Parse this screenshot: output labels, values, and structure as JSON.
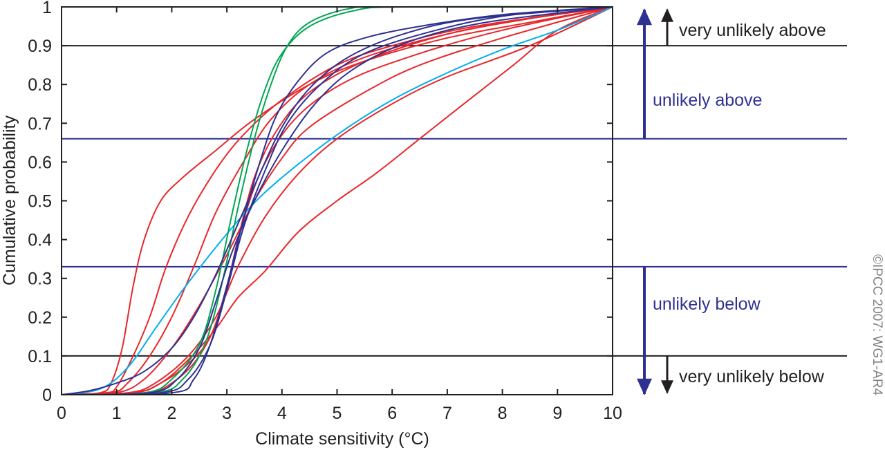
{
  "chart_data": {
    "type": "line",
    "title": "",
    "xlabel": "Climate sensitivity (°C)",
    "ylabel": "Cumulative probability",
    "xlim": [
      0,
      10
    ],
    "ylim": [
      0,
      1
    ],
    "xticks": [
      "0",
      "1",
      "2",
      "3",
      "4",
      "5",
      "6",
      "7",
      "8",
      "9",
      "10"
    ],
    "yticks": [
      "0",
      "0.1",
      "0.2",
      "0.3",
      "0.4",
      "0.5",
      "0.6",
      "0.7",
      "0.8",
      "0.9",
      "1"
    ],
    "grid": false,
    "colors": {
      "red": "#e8262a",
      "blue": "#2e3192",
      "green": "#00a651",
      "cyan": "#00aeef",
      "black": "#231f20"
    },
    "reference_lines": [
      {
        "y": 0.9,
        "color": "#231f20"
      },
      {
        "y": 0.66,
        "color": "#2e3192"
      },
      {
        "y": 0.33,
        "color": "#2e3192"
      },
      {
        "y": 0.1,
        "color": "#231f20"
      }
    ],
    "band_labels": [
      {
        "text": "very unlikely above",
        "color": "#231f20"
      },
      {
        "text": "unlikely above",
        "color": "#2e3192"
      },
      {
        "text": "unlikely below",
        "color": "#2e3192"
      },
      {
        "text": "very unlikely below",
        "color": "#231f20"
      }
    ],
    "series": [
      {
        "color": "#e8262a",
        "points": [
          [
            0,
            0
          ],
          [
            0.7,
            0.005
          ],
          [
            0.9,
            0.03
          ],
          [
            1.1,
            0.12
          ],
          [
            1.3,
            0.28
          ],
          [
            1.5,
            0.4
          ],
          [
            1.8,
            0.5
          ],
          [
            2.2,
            0.56
          ],
          [
            2.8,
            0.63
          ],
          [
            3.5,
            0.71
          ],
          [
            4.5,
            0.8
          ],
          [
            5.5,
            0.86
          ],
          [
            7,
            0.92
          ],
          [
            8.5,
            0.96
          ],
          [
            10,
            1
          ]
        ]
      },
      {
        "color": "#e8262a",
        "points": [
          [
            0,
            0
          ],
          [
            0.8,
            0.005
          ],
          [
            1.0,
            0.02
          ],
          [
            1.3,
            0.1
          ],
          [
            1.6,
            0.2
          ],
          [
            1.9,
            0.33
          ],
          [
            2.3,
            0.46
          ],
          [
            2.8,
            0.58
          ],
          [
            3.3,
            0.67
          ],
          [
            4.0,
            0.76
          ],
          [
            5,
            0.85
          ],
          [
            6,
            0.9
          ],
          [
            7.5,
            0.95
          ],
          [
            10,
            1
          ]
        ]
      },
      {
        "color": "#e8262a",
        "points": [
          [
            0,
            0
          ],
          [
            0.9,
            0.005
          ],
          [
            1.2,
            0.03
          ],
          [
            1.6,
            0.1
          ],
          [
            2.0,
            0.2
          ],
          [
            2.4,
            0.33
          ],
          [
            2.8,
            0.47
          ],
          [
            3.3,
            0.6
          ],
          [
            3.8,
            0.71
          ],
          [
            4.5,
            0.8
          ],
          [
            5.5,
            0.87
          ],
          [
            7,
            0.93
          ],
          [
            8.5,
            0.97
          ],
          [
            10,
            1
          ]
        ]
      },
      {
        "color": "#e8262a",
        "points": [
          [
            0,
            0
          ],
          [
            1.0,
            0.005
          ],
          [
            1.5,
            0.04
          ],
          [
            2.0,
            0.12
          ],
          [
            2.5,
            0.23
          ],
          [
            3.0,
            0.36
          ],
          [
            3.5,
            0.5
          ],
          [
            4.0,
            0.61
          ],
          [
            4.5,
            0.69
          ],
          [
            5.5,
            0.78
          ],
          [
            6.5,
            0.85
          ],
          [
            8,
            0.92
          ],
          [
            10,
            1
          ]
        ]
      },
      {
        "color": "#e8262a",
        "points": [
          [
            0,
            0
          ],
          [
            1.2,
            0.005
          ],
          [
            1.7,
            0.03
          ],
          [
            2.3,
            0.1
          ],
          [
            2.8,
            0.2
          ],
          [
            3.2,
            0.33
          ],
          [
            3.7,
            0.46
          ],
          [
            4.3,
            0.57
          ],
          [
            5,
            0.66
          ],
          [
            6,
            0.75
          ],
          [
            7,
            0.82
          ],
          [
            8.5,
            0.9
          ],
          [
            10,
            1
          ]
        ]
      },
      {
        "color": "#e8262a",
        "points": [
          [
            0,
            0
          ],
          [
            1.3,
            0.005
          ],
          [
            1.8,
            0.03
          ],
          [
            2.3,
            0.09
          ],
          [
            2.8,
            0.17
          ],
          [
            3.2,
            0.25
          ],
          [
            3.7,
            0.32
          ],
          [
            4.3,
            0.42
          ],
          [
            5,
            0.5
          ],
          [
            5.7,
            0.57
          ],
          [
            6.5,
            0.66
          ],
          [
            7.3,
            0.75
          ],
          [
            8.2,
            0.85
          ],
          [
            9,
            0.94
          ],
          [
            10,
            1
          ]
        ]
      },
      {
        "color": "#e8262a",
        "points": [
          [
            0,
            0
          ],
          [
            1.5,
            0.005
          ],
          [
            2.0,
            0.03
          ],
          [
            2.5,
            0.1
          ],
          [
            2.9,
            0.22
          ],
          [
            3.2,
            0.4
          ],
          [
            3.5,
            0.56
          ],
          [
            3.9,
            0.68
          ],
          [
            4.5,
            0.78
          ],
          [
            5.5,
            0.86
          ],
          [
            7,
            0.93
          ],
          [
            8.5,
            0.97
          ],
          [
            10,
            1
          ]
        ]
      },
      {
        "color": "#e8262a",
        "points": [
          [
            0,
            0
          ],
          [
            1.3,
            0.005
          ],
          [
            1.8,
            0.03
          ],
          [
            2.3,
            0.08
          ],
          [
            2.7,
            0.15
          ],
          [
            3.0,
            0.28
          ],
          [
            3.3,
            0.45
          ],
          [
            3.7,
            0.6
          ],
          [
            4.3,
            0.72
          ],
          [
            5.2,
            0.81
          ],
          [
            6.5,
            0.88
          ],
          [
            8,
            0.94
          ],
          [
            10,
            1
          ]
        ]
      },
      {
        "color": "#00aeef",
        "points": [
          [
            0,
            0
          ],
          [
            0.7,
            0.015
          ],
          [
            1.2,
            0.07
          ],
          [
            1.7,
            0.17
          ],
          [
            2.2,
            0.27
          ],
          [
            2.8,
            0.38
          ],
          [
            3.4,
            0.48
          ],
          [
            4.0,
            0.56
          ],
          [
            5,
            0.67
          ],
          [
            6,
            0.76
          ],
          [
            7,
            0.83
          ],
          [
            8,
            0.89
          ],
          [
            9,
            0.94
          ],
          [
            10,
            1
          ]
        ]
      },
      {
        "color": "#00a651",
        "points": [
          [
            0,
            0
          ],
          [
            1.7,
            0.005
          ],
          [
            2.2,
            0.04
          ],
          [
            2.6,
            0.13
          ],
          [
            2.9,
            0.28
          ],
          [
            3.2,
            0.48
          ],
          [
            3.5,
            0.66
          ],
          [
            3.8,
            0.8
          ],
          [
            4.1,
            0.9
          ],
          [
            4.5,
            0.96
          ],
          [
            5.2,
            0.995
          ],
          [
            6,
            1
          ],
          [
            10,
            1
          ]
        ]
      },
      {
        "color": "#00a651",
        "points": [
          [
            0,
            0
          ],
          [
            1.5,
            0.005
          ],
          [
            2.0,
            0.04
          ],
          [
            2.5,
            0.13
          ],
          [
            2.8,
            0.27
          ],
          [
            3.1,
            0.47
          ],
          [
            3.4,
            0.65
          ],
          [
            3.7,
            0.79
          ],
          [
            4.0,
            0.88
          ],
          [
            4.5,
            0.95
          ],
          [
            5.3,
            0.99
          ],
          [
            6.2,
            1
          ],
          [
            10,
            1
          ]
        ]
      },
      {
        "color": "#2e3192",
        "points": [
          [
            0,
            0
          ],
          [
            0.5,
            0.01
          ],
          [
            1.0,
            0.03
          ],
          [
            1.5,
            0.06
          ],
          [
            2.0,
            0.12
          ],
          [
            2.4,
            0.2
          ],
          [
            2.8,
            0.31
          ],
          [
            3.2,
            0.44
          ],
          [
            3.6,
            0.57
          ],
          [
            4.0,
            0.69
          ],
          [
            4.5,
            0.79
          ],
          [
            5.2,
            0.87
          ],
          [
            6.2,
            0.93
          ],
          [
            7.5,
            0.97
          ],
          [
            10,
            1
          ]
        ]
      },
      {
        "color": "#2e3192",
        "points": [
          [
            0,
            0
          ],
          [
            2.0,
            0.005
          ],
          [
            2.4,
            0.04
          ],
          [
            2.7,
            0.13
          ],
          [
            3.0,
            0.28
          ],
          [
            3.3,
            0.45
          ],
          [
            3.6,
            0.6
          ],
          [
            3.9,
            0.72
          ],
          [
            4.3,
            0.81
          ],
          [
            4.8,
            0.88
          ],
          [
            5.5,
            0.92
          ],
          [
            6.5,
            0.95
          ],
          [
            8,
            0.98
          ],
          [
            10,
            1
          ]
        ]
      },
      {
        "color": "#2e3192",
        "points": [
          [
            0,
            0
          ],
          [
            1.6,
            0.005
          ],
          [
            2.1,
            0.04
          ],
          [
            2.5,
            0.12
          ],
          [
            2.8,
            0.24
          ],
          [
            3.1,
            0.37
          ],
          [
            3.5,
            0.5
          ],
          [
            4.0,
            0.63
          ],
          [
            4.6,
            0.75
          ],
          [
            5.3,
            0.84
          ],
          [
            6.3,
            0.91
          ],
          [
            7.7,
            0.96
          ],
          [
            10,
            1
          ]
        ]
      },
      {
        "color": "#2e3192",
        "points": [
          [
            0,
            0
          ],
          [
            1.8,
            0.005
          ],
          [
            2.3,
            0.04
          ],
          [
            2.7,
            0.13
          ],
          [
            3.0,
            0.27
          ],
          [
            3.3,
            0.43
          ],
          [
            3.7,
            0.58
          ],
          [
            4.1,
            0.7
          ],
          [
            4.7,
            0.8
          ],
          [
            5.5,
            0.88
          ],
          [
            6.8,
            0.94
          ],
          [
            8.2,
            0.98
          ],
          [
            10,
            1
          ]
        ]
      }
    ]
  },
  "copyright": "©IPCC  2007: WG1-AR4"
}
